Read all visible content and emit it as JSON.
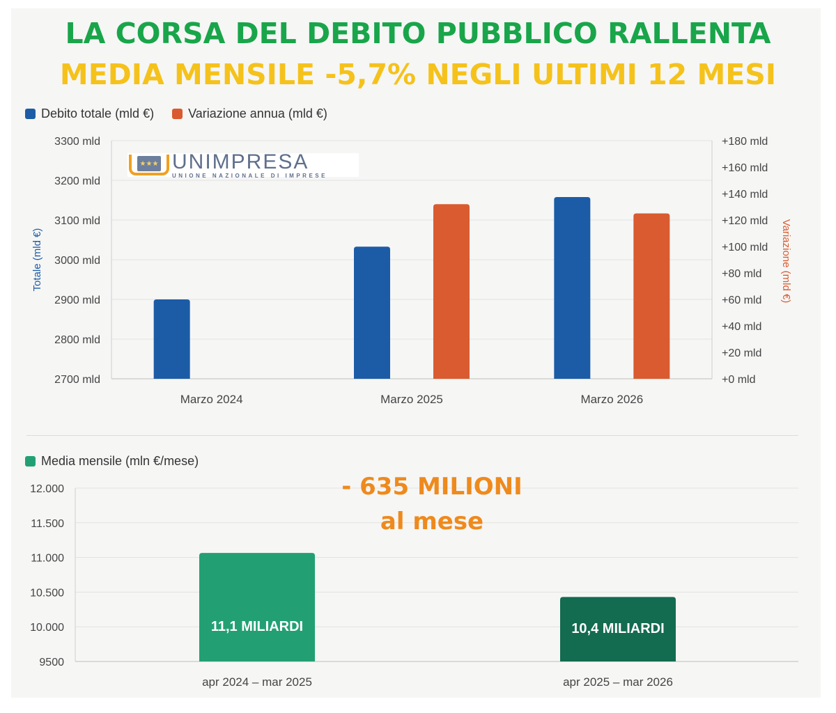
{
  "header": {
    "title": "LA CORSA DEL DEBITO PUBBLICO RALLENTA",
    "subtitle": "MEDIA MENSILE -5,7% NEGLI ULTIMI 12 MESI"
  },
  "colors": {
    "title": "#19a54a",
    "subtitle": "#f5c21b",
    "debito": "#1c5ca7",
    "variazione": "#d95b2f",
    "media_1": "#22a074",
    "media_2": "#136b50",
    "annotation": "#ee8a1d"
  },
  "logo": {
    "name": "UNIMPRESA",
    "subtitle": "UNIONE NAZIONALE DI IMPRESE",
    "icon": "eu-stars-icon"
  },
  "annotation": {
    "line1": "- 635 MILIONI",
    "line2": "al mese"
  },
  "chart_data": [
    {
      "type": "bar",
      "legend": [
        "Debito totale (mld €)",
        "Variazione annua (mld €)"
      ],
      "categories": [
        "Marzo 2024",
        "Marzo 2025",
        "Marzo 2026"
      ],
      "series": [
        {
          "name": "Debito totale (mld €)",
          "axis": "left",
          "values": [
            2900,
            3033,
            3158
          ]
        },
        {
          "name": "Variazione annua (mld €)",
          "axis": "right",
          "values": [
            null,
            132,
            125
          ]
        }
      ],
      "y_left": {
        "label": "Totale (mld €)",
        "ylim": [
          2700,
          3300
        ],
        "ticks": [
          2700,
          2800,
          2900,
          3000,
          3100,
          3200,
          3300
        ],
        "tick_labels": [
          "2700 mld",
          "2800 mld",
          "2900 mld",
          "3000 mld",
          "3100 mld",
          "3200 mld",
          "3300 mld"
        ]
      },
      "y_right": {
        "label": "Variazione (mld €)",
        "ylim": [
          0,
          180
        ],
        "ticks": [
          0,
          20,
          40,
          60,
          80,
          100,
          120,
          140,
          160,
          180
        ],
        "tick_labels": [
          "+0 mld",
          "+20 mld",
          "+40 mld",
          "+60 mld",
          "+80 mld",
          "+100 mld",
          "+120 mld",
          "+140 mld",
          "+160 mld",
          "+180 mld"
        ]
      },
      "grid": true,
      "legend_position": "top-left"
    },
    {
      "type": "bar",
      "legend": [
        "Media mensile (mln €/mese)"
      ],
      "categories": [
        "apr 2024 – mar 2025",
        "apr 2025 – mar 2026"
      ],
      "series": [
        {
          "name": "Media mensile (mln €/mese)",
          "values": [
            11065,
            10430
          ]
        }
      ],
      "data_labels": [
        "11,1 MILIARDI",
        "10,4 MILIARDI"
      ],
      "y": {
        "ylim": [
          9500,
          12000
        ],
        "ticks": [
          9500,
          10000,
          10500,
          11000,
          11500,
          12000
        ],
        "tick_labels": [
          "9500",
          "10.000",
          "10.500",
          "11.000",
          "11.500",
          "12.000"
        ]
      },
      "grid": true,
      "legend_position": "top-left"
    }
  ]
}
